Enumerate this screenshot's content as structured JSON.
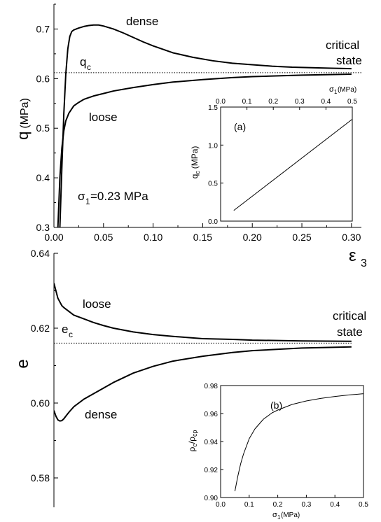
{
  "chart_data": [
    {
      "type": "line",
      "panel": "top",
      "xlim": [
        0.0,
        0.31
      ],
      "ylim": [
        0.3,
        0.75
      ],
      "xticks": [
        0.0,
        0.05,
        0.1,
        0.15,
        0.2,
        0.25,
        0.3
      ],
      "xtick_labels": [
        "0.00",
        "0.05",
        "0.10",
        "0.15",
        "0.20",
        "0.25",
        "0.30"
      ],
      "yticks": [
        0.3,
        0.4,
        0.5,
        0.6,
        0.7
      ],
      "ytick_labels": [
        "0.3",
        "0.4",
        "0.5",
        "0.6",
        "0.7"
      ],
      "ylabel": "q (MPa)",
      "xlabel": "ε3",
      "reference_line": {
        "value": 0.612,
        "style": "dotted",
        "label": "q_c"
      },
      "series": [
        {
          "name": "dense",
          "x": [
            0.006,
            0.008,
            0.01,
            0.012,
            0.014,
            0.016,
            0.018,
            0.02,
            0.025,
            0.03,
            0.035,
            0.04,
            0.045,
            0.05,
            0.06,
            0.07,
            0.08,
            0.09,
            0.1,
            0.12,
            0.14,
            0.16,
            0.18,
            0.2,
            0.22,
            0.24,
            0.26,
            0.28,
            0.3
          ],
          "y": [
            0.3,
            0.42,
            0.53,
            0.61,
            0.66,
            0.685,
            0.695,
            0.698,
            0.702,
            0.705,
            0.707,
            0.708,
            0.708,
            0.706,
            0.7,
            0.692,
            0.683,
            0.674,
            0.666,
            0.652,
            0.643,
            0.636,
            0.631,
            0.628,
            0.625,
            0.623,
            0.622,
            0.621,
            0.62
          ]
        },
        {
          "name": "loose",
          "x": [
            0.004,
            0.006,
            0.008,
            0.01,
            0.012,
            0.015,
            0.02,
            0.025,
            0.03,
            0.04,
            0.05,
            0.06,
            0.08,
            0.1,
            0.12,
            0.15,
            0.18,
            0.2,
            0.25,
            0.3
          ],
          "y": [
            0.3,
            0.4,
            0.46,
            0.495,
            0.515,
            0.53,
            0.545,
            0.552,
            0.558,
            0.565,
            0.57,
            0.575,
            0.582,
            0.588,
            0.593,
            0.598,
            0.602,
            0.604,
            0.607,
            0.609
          ]
        }
      ],
      "annotations": {
        "dense": "dense",
        "loose": "loose",
        "critical": "critical",
        "state": "state",
        "qc_main": "q",
        "qc_sub": "c",
        "sigma_sym": "σ",
        "sigma_sub": "1",
        "sigma_val": "=0.23 MPa"
      },
      "ylabel_main": "q",
      "ylabel_unit": "(MPa)",
      "xlabel_sym": "ε",
      "xlabel_sub": "3"
    },
    {
      "type": "line",
      "panel": "top-inset",
      "label": "(a)",
      "xlim": [
        0.0,
        0.5
      ],
      "ylim": [
        0.0,
        1.5
      ],
      "xaxis_position": "top",
      "xticks": [
        0.0,
        0.1,
        0.2,
        0.3,
        0.4,
        0.5
      ],
      "xtick_labels": [
        "0.0",
        "0.1",
        "0.2",
        "0.3",
        "0.4",
        "0.5"
      ],
      "yticks": [
        0.0,
        0.5,
        1.0,
        1.5
      ],
      "ytick_labels": [
        "0.0",
        "0.5",
        "1.0",
        "1.5"
      ],
      "xlabel_sym": "σ",
      "xlabel_sub": "1",
      "xlabel_unit": "(MPa)",
      "ylabel_sym": "q",
      "ylabel_sub": "c",
      "ylabel_unit": "(MPa)",
      "series": [
        {
          "x": [
            0.05,
            0.5
          ],
          "y": [
            0.14,
            1.34
          ]
        }
      ]
    },
    {
      "type": "line",
      "panel": "bottom",
      "xlim": [
        0.0,
        0.31
      ],
      "ylim": [
        0.58,
        0.64
      ],
      "yticks": [
        0.58,
        0.6,
        0.62,
        0.64
      ],
      "ytick_labels": [
        "0.58",
        "0.60",
        "0.62",
        "0.64"
      ],
      "ylabel": "e",
      "reference_line": {
        "value": 0.616,
        "style": "dotted",
        "label": "e_c"
      },
      "series": [
        {
          "name": "loose",
          "x": [
            0.0,
            0.002,
            0.004,
            0.006,
            0.008,
            0.01,
            0.015,
            0.02,
            0.03,
            0.04,
            0.05,
            0.06,
            0.08,
            0.1,
            0.12,
            0.15,
            0.18,
            0.2,
            0.25,
            0.3
          ],
          "y": [
            0.632,
            0.63,
            0.628,
            0.627,
            0.626,
            0.6255,
            0.6245,
            0.6235,
            0.6225,
            0.6215,
            0.6207,
            0.62,
            0.619,
            0.6183,
            0.6178,
            0.6172,
            0.617,
            0.6168,
            0.6166,
            0.6165
          ]
        },
        {
          "name": "dense",
          "x": [
            0.0,
            0.002,
            0.004,
            0.006,
            0.008,
            0.01,
            0.012,
            0.015,
            0.02,
            0.025,
            0.03,
            0.04,
            0.05,
            0.06,
            0.08,
            0.1,
            0.12,
            0.15,
            0.18,
            0.2,
            0.25,
            0.3
          ],
          "y": [
            0.598,
            0.5965,
            0.5955,
            0.5952,
            0.5953,
            0.5958,
            0.5965,
            0.5975,
            0.599,
            0.6,
            0.601,
            0.6025,
            0.604,
            0.6055,
            0.608,
            0.6098,
            0.6112,
            0.6125,
            0.6135,
            0.614,
            0.6147,
            0.615
          ]
        }
      ],
      "annotations": {
        "loose": "loose",
        "dense": "dense",
        "critical": "critical",
        "state": "state",
        "ec_main": "e",
        "ec_sub": "c"
      }
    },
    {
      "type": "line",
      "panel": "bottom-inset",
      "label": "(b)",
      "xlim": [
        0.0,
        0.5
      ],
      "ylim": [
        0.9,
        0.98
      ],
      "xticks": [
        0.0,
        0.1,
        0.2,
        0.3,
        0.4,
        0.5
      ],
      "xtick_labels": [
        "0.0",
        "0.1",
        "0.2",
        "0.3",
        "0.4",
        "0.5"
      ],
      "yticks": [
        0.9,
        0.92,
        0.94,
        0.96,
        0.98
      ],
      "ytick_labels": [
        "0.90",
        "0.92",
        "0.94",
        "0.96",
        "0.98"
      ],
      "xlabel_sym": "σ",
      "xlabel_sub": "1",
      "xlabel_unit": "(MPa)",
      "ylabel_main1": "ρ",
      "ylabel_sub1": "c",
      "ylabel_slash": "/ρ",
      "ylabel_sub2": "cp",
      "series": [
        {
          "x": [
            0.05,
            0.06,
            0.07,
            0.08,
            0.1,
            0.12,
            0.15,
            0.18,
            0.2,
            0.25,
            0.3,
            0.35,
            0.4,
            0.45,
            0.5
          ],
          "y": [
            0.9045,
            0.915,
            0.924,
            0.931,
            0.942,
            0.949,
            0.956,
            0.9605,
            0.9625,
            0.9665,
            0.969,
            0.9708,
            0.9722,
            0.9733,
            0.9742
          ]
        }
      ]
    }
  ]
}
